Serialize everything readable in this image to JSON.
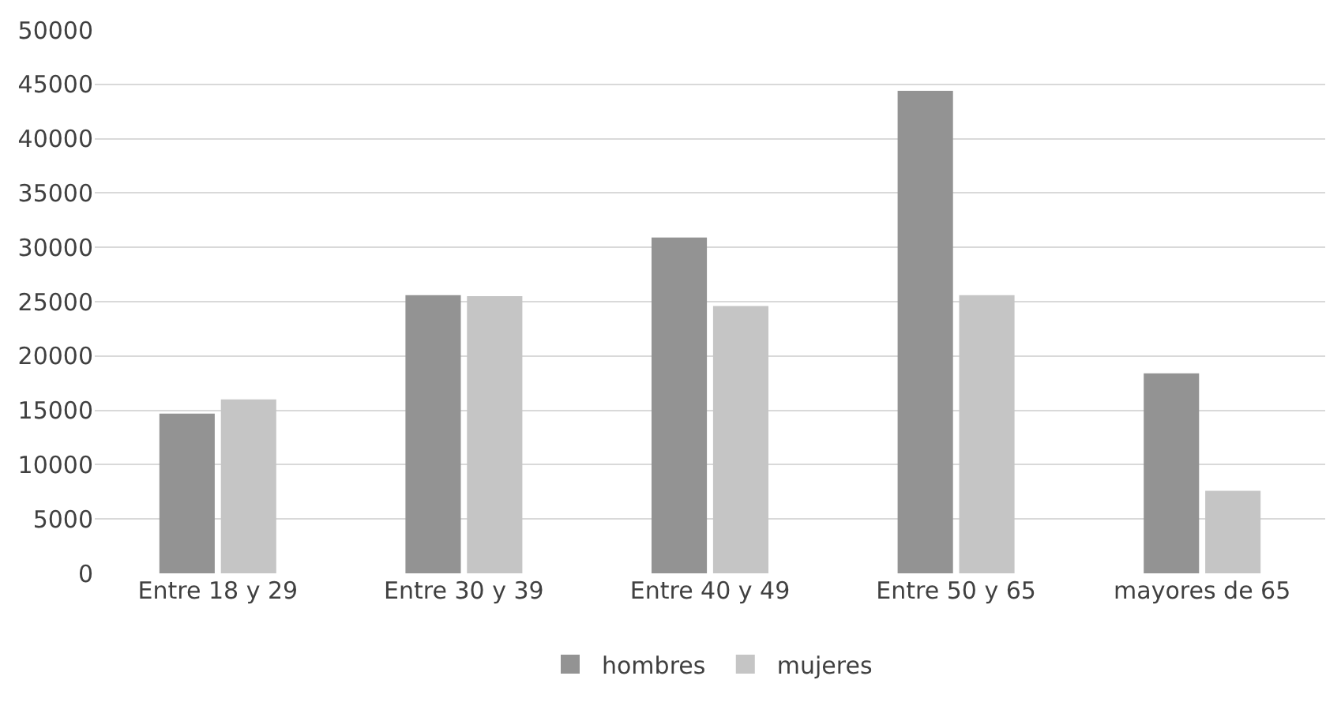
{
  "chart_data": {
    "type": "bar",
    "categories": [
      "Entre 18 y 29",
      "Entre 30 y 39",
      "Entre 40 y 49",
      "Entre 50 y 65",
      "mayores de 65"
    ],
    "series": [
      {
        "name": "hombres",
        "color": "#939393",
        "values": [
          14700,
          25600,
          30900,
          44400,
          18400
        ]
      },
      {
        "name": "mujeres",
        "color": "#c5c5c5",
        "values": [
          16000,
          25500,
          24600,
          25600,
          7600
        ]
      }
    ],
    "ylim": [
      0,
      50000
    ],
    "yticks": [
      0,
      5000,
      10000,
      15000,
      20000,
      25000,
      30000,
      35000,
      40000,
      45000,
      50000
    ],
    "grid": "y",
    "legend": "bottom"
  }
}
